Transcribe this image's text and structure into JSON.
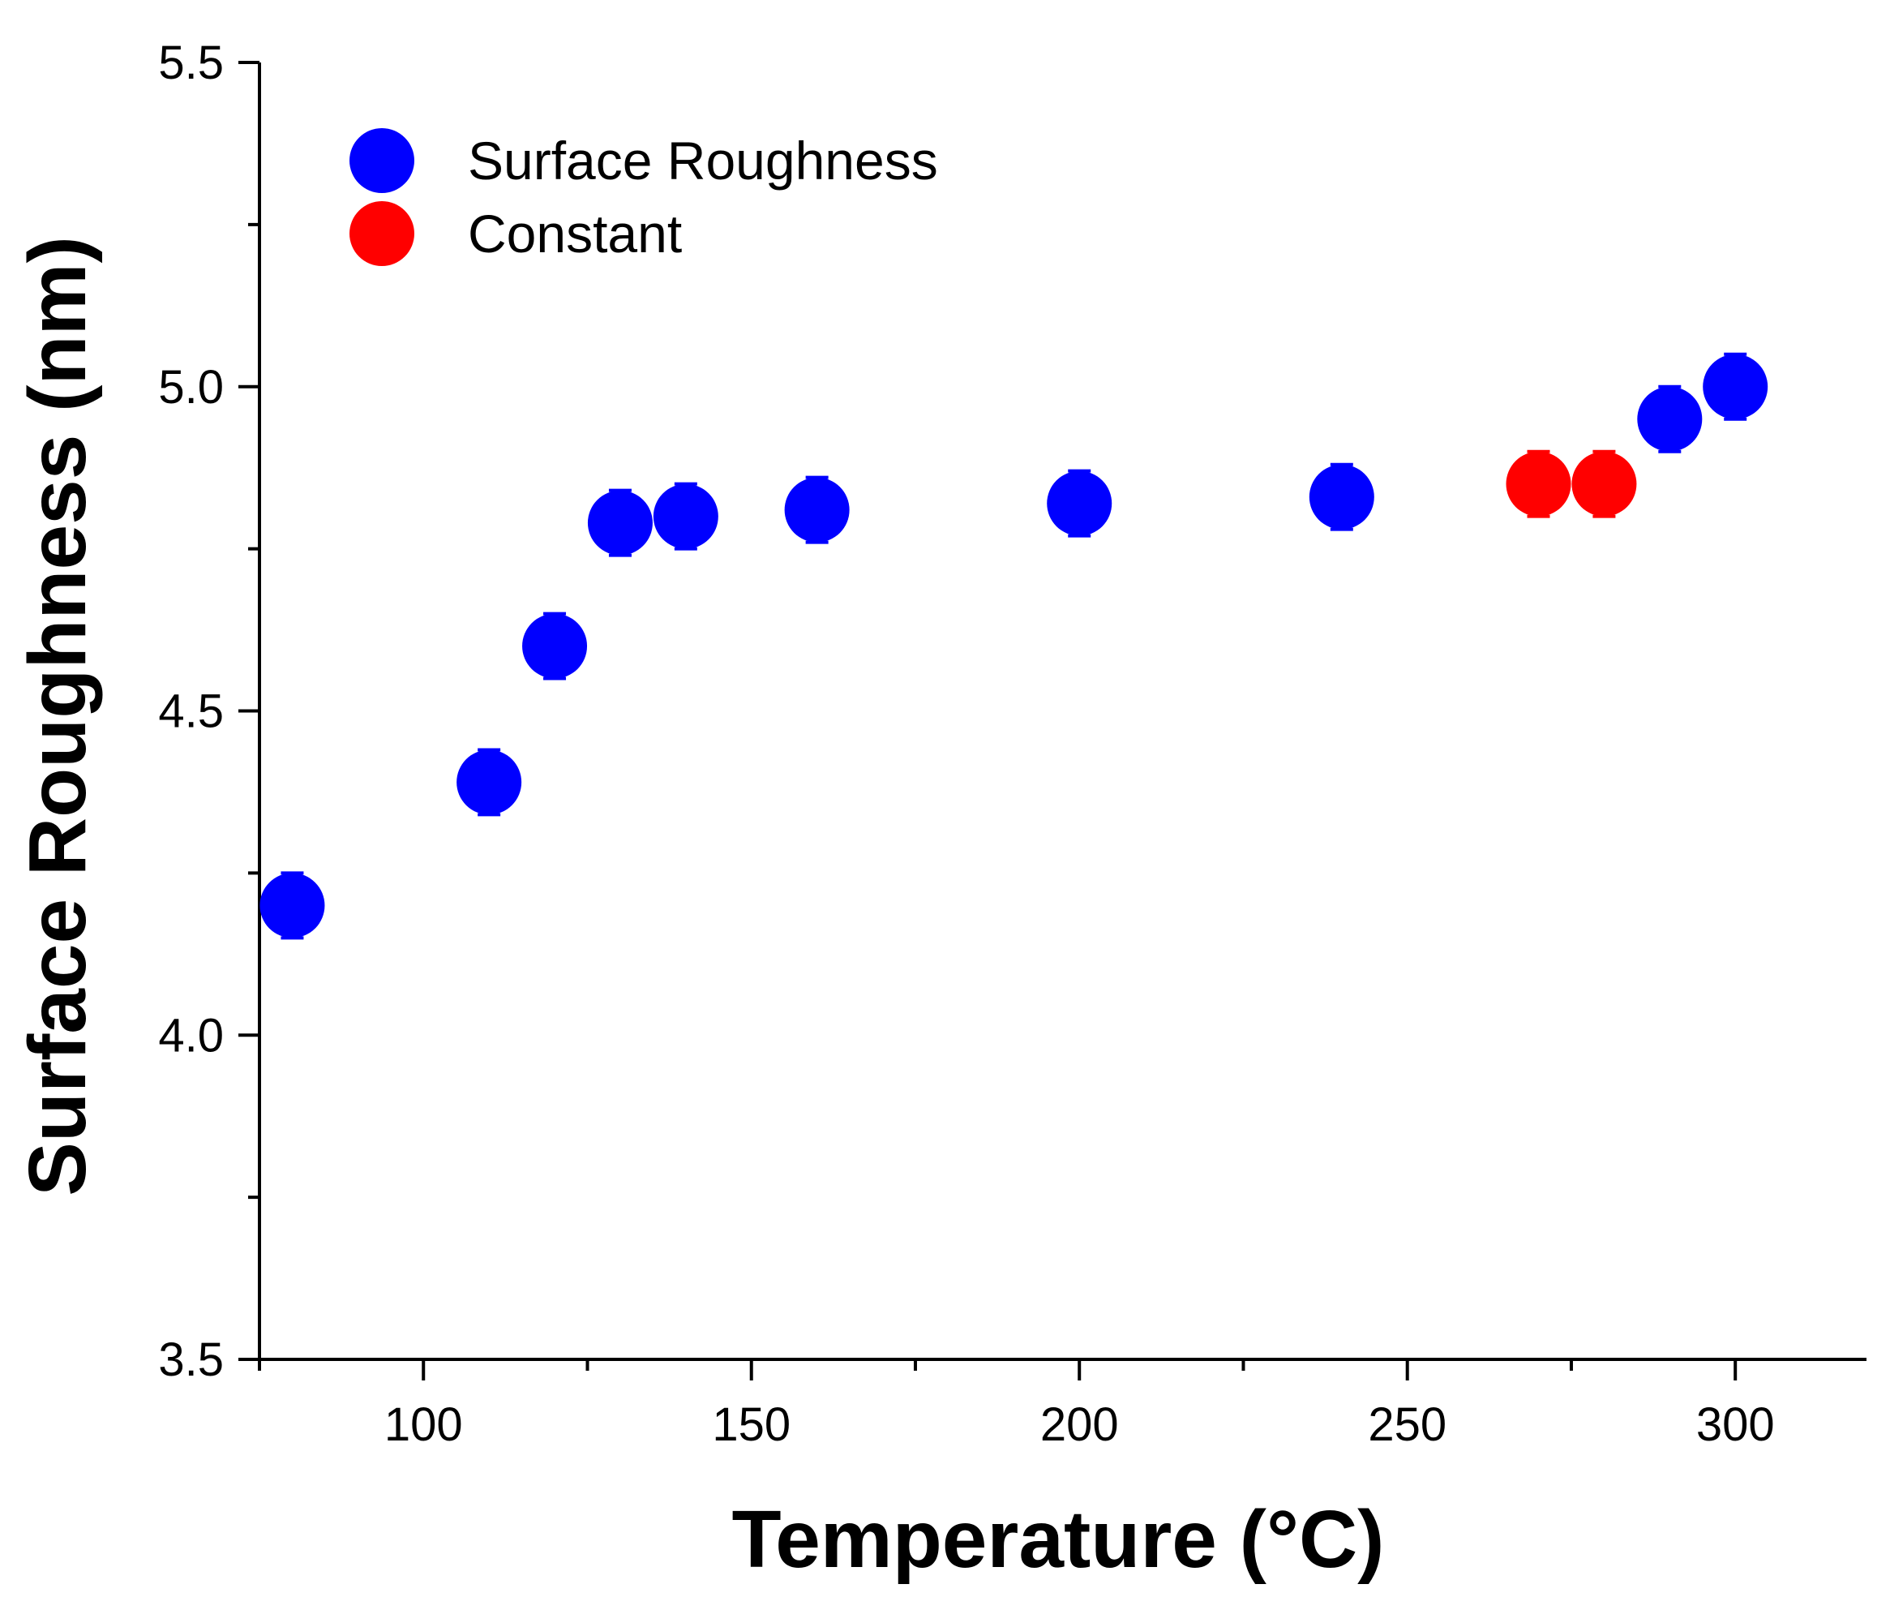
{
  "chart_data": {
    "type": "scatter",
    "xlabel": "Temperature (°C)",
    "ylabel": "Surface Roughness (nm)",
    "xlim": [
      75,
      320
    ],
    "ylim": [
      3.5,
      5.5
    ],
    "x_ticks": [
      100,
      150,
      200,
      250,
      300
    ],
    "x_tick_labels": [
      "100",
      "150",
      "200",
      "250",
      "300"
    ],
    "x_minor_ticks": [
      75,
      125,
      175,
      225,
      275
    ],
    "y_ticks": [
      3.5,
      4.0,
      4.5,
      5.0,
      5.5
    ],
    "y_tick_labels": [
      "3.5",
      "4.0",
      "4.5",
      "5.0",
      "5.5"
    ],
    "y_minor_ticks": [
      3.75,
      4.25,
      4.75,
      5.25
    ],
    "legend_position": "top-left",
    "series": [
      {
        "name": "Surface Roughness",
        "color": "#0000ff",
        "points": [
          {
            "x": 80,
            "y": 4.2,
            "err": 0.05
          },
          {
            "x": 110,
            "y": 4.39,
            "err": 0.05
          },
          {
            "x": 120,
            "y": 4.6,
            "err": 0.05
          },
          {
            "x": 130,
            "y": 4.79,
            "err": 0.05
          },
          {
            "x": 140,
            "y": 4.8,
            "err": 0.05
          },
          {
            "x": 160,
            "y": 4.81,
            "err": 0.05
          },
          {
            "x": 200,
            "y": 4.82,
            "err": 0.05
          },
          {
            "x": 240,
            "y": 4.83,
            "err": 0.05
          },
          {
            "x": 290,
            "y": 4.95,
            "err": 0.05
          },
          {
            "x": 300,
            "y": 5.0,
            "err": 0.05
          }
        ]
      },
      {
        "name": "Constant",
        "color": "#ff0000",
        "points": [
          {
            "x": 270,
            "y": 4.85,
            "err": 0.05
          },
          {
            "x": 280,
            "y": 4.85,
            "err": 0.05
          }
        ]
      }
    ]
  }
}
